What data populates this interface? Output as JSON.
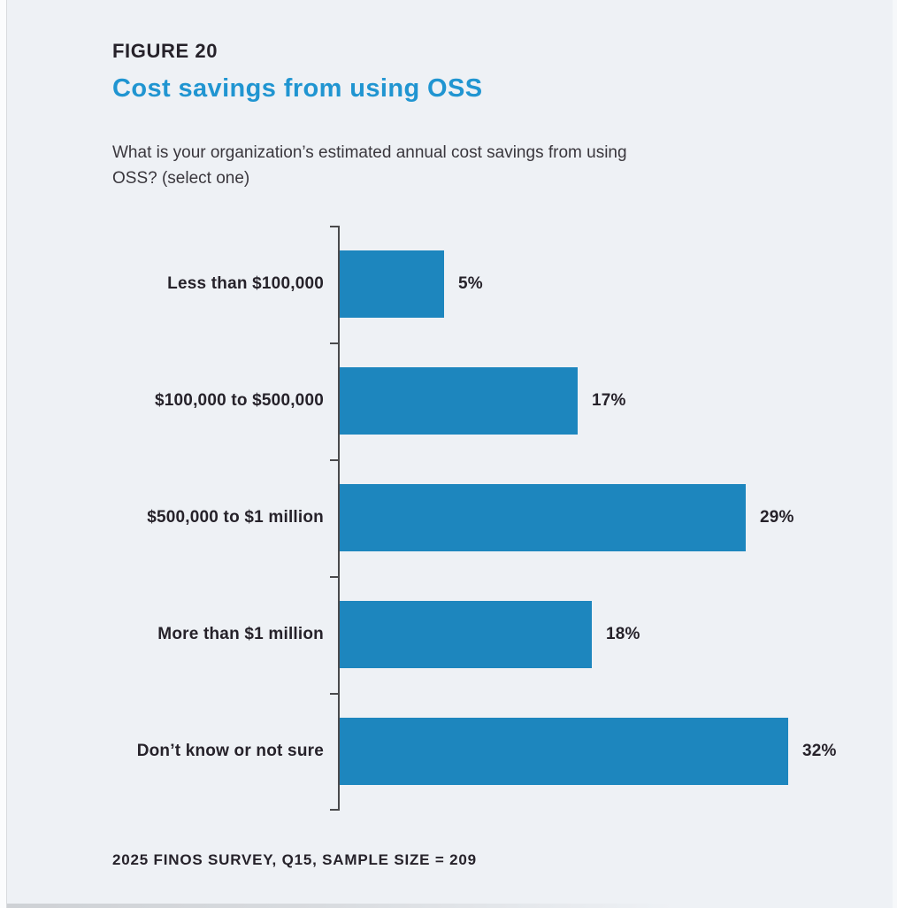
{
  "page": {
    "figure_label": "FIGURE 20",
    "title": "Cost savings from using OSS",
    "question_lines": [
      "What is your organization’s estimated annual cost savings from using",
      "OSS? (select one)"
    ],
    "footer": "2025 FINOS SURVEY, Q15, SAMPLE SIZE = 209"
  },
  "colors": {
    "background": "#eef1f5",
    "accent_blue": "#2095d1",
    "bar_blue": "#1d86be",
    "text_dark": "#26222a",
    "axis": "#4a4a4c"
  },
  "chart_data": {
    "type": "bar",
    "orientation": "horizontal",
    "title": "Cost savings from using OSS",
    "xlabel": "",
    "ylabel": "",
    "categories": [
      "Less than $100,000",
      "$100,000 to $500,000",
      "$500,000 to $1 million",
      "More than $1 million",
      "Don’t know or not sure"
    ],
    "values": [
      5,
      17,
      29,
      18,
      32
    ],
    "value_labels": [
      "5%",
      "17%",
      "29%",
      "18%",
      "32%"
    ],
    "xlim": [
      0,
      32
    ],
    "grid": false,
    "legend": false,
    "source_note": "2025 FINOS SURVEY, Q15, SAMPLE SIZE = 209"
  }
}
